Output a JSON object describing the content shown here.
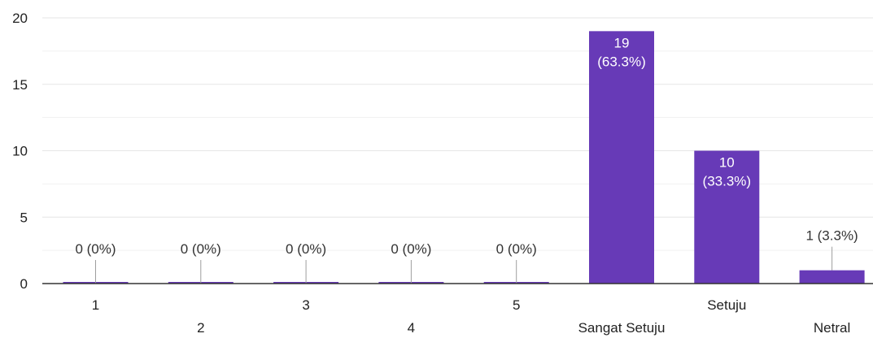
{
  "chart_data": {
    "type": "bar",
    "categories": [
      "1",
      "2",
      "3",
      "4",
      "5",
      "Sangat Setuju",
      "Setuju",
      "Netral"
    ],
    "values": [
      0,
      0,
      0,
      0,
      0,
      19,
      10,
      1
    ],
    "data_labels": [
      "0 (0%)",
      "0 (0%)",
      "0 (0%)",
      "0 (0%)",
      "0 (0%)",
      "19\n(63.3%)",
      "10\n(33.3%)",
      "1 (3.3%)"
    ],
    "yticks": [
      "0",
      "5",
      "10",
      "15",
      "20"
    ],
    "ylim": [
      0,
      20
    ],
    "title": "",
    "xlabel": "",
    "ylabel": "",
    "grid": true,
    "legend": "none",
    "bar_color": "#673ab7",
    "grid_color": "#e6e6e6",
    "axis_color": "#333333",
    "label_inside_color": "#ffffff",
    "label_outside_color": "#333333"
  }
}
